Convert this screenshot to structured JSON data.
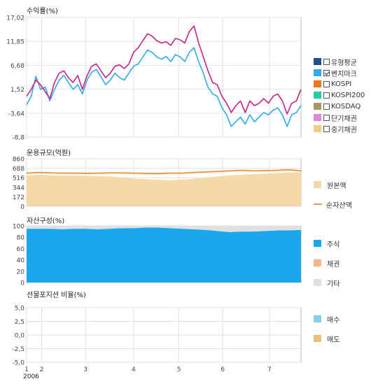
{
  "chart_data": [
    {
      "type": "line",
      "title": "수익률(%)",
      "y_ticks": [
        "17,02",
        "11,85",
        "6,68",
        "1,52",
        "-3,64",
        "-8,8"
      ],
      "ylim": [
        -8.8,
        17.02
      ],
      "series": [
        {
          "name": "벤치마크",
          "color": "#33aaee",
          "checked": true,
          "values": [
            -1.8,
            0,
            4.3,
            1.5,
            2,
            -1,
            1.5,
            3.5,
            4.5,
            3,
            1.5,
            2.5,
            0.5,
            3.5,
            5.2,
            5.8,
            4.2,
            2.5,
            3.5,
            5,
            4,
            3.5,
            5,
            6.5,
            7,
            8.5,
            10,
            9.5,
            8.5,
            8,
            8.6,
            7.5,
            9,
            8.5,
            7.5,
            9.5,
            10.5,
            7.5,
            5,
            2,
            0.5,
            0,
            -2.5,
            -4,
            -6.5,
            -5.5,
            -4.5,
            -6,
            -4,
            -5.5,
            -4.5,
            -3.5,
            -4,
            -3,
            -2.5,
            -4,
            -6.5,
            -4,
            -3.5,
            -2
          ]
        },
        {
          "name": "유형평균",
          "color": "#1f4e8c",
          "checked": false,
          "values": []
        },
        {
          "name": "KOSPI",
          "color": "#ee7722",
          "checked": false,
          "values": []
        },
        {
          "name": "KOSPI200",
          "color": "#22ccaa",
          "checked": false,
          "values": []
        },
        {
          "name": "KOSDAQ",
          "color": "#aa9966",
          "checked": false,
          "values": []
        },
        {
          "name": "단기채권",
          "color": "#dd88dd",
          "checked": false,
          "values": []
        },
        {
          "name": "중기채권",
          "color": "#f2cc88",
          "checked": false,
          "values": []
        },
        {
          "name": "",
          "color": "#cc2288",
          "checked": false,
          "in_legend": false,
          "values": [
            0,
            1.5,
            3.5,
            2.5,
            1,
            -0.5,
            3,
            5,
            5.5,
            4,
            3,
            4.5,
            1.5,
            4.5,
            6.5,
            7,
            5.5,
            4,
            5,
            6.5,
            6.8,
            6,
            7,
            9.5,
            10.5,
            12,
            13.5,
            13,
            12,
            11.5,
            11.8,
            11,
            12.5,
            12.2,
            11.5,
            14,
            15.2,
            11.5,
            8.5,
            5.5,
            3,
            2.5,
            0,
            -1.5,
            -3.5,
            -2,
            -1,
            -3.5,
            -1,
            -2,
            -1.5,
            -0.5,
            -1.5,
            0,
            0.5,
            -1,
            -3.8,
            -1.5,
            -1,
            1.5
          ]
        }
      ],
      "x_ticks": [
        "1",
        "2",
        "3",
        "4",
        "5",
        "6",
        "7"
      ],
      "x_sublabel": "2006"
    },
    {
      "type": "area",
      "title": "운용규모(억원)",
      "y_ticks": [
        "860",
        "688",
        "516",
        "344",
        "172",
        "0"
      ],
      "ylim": [
        0,
        860
      ],
      "series": [
        {
          "name": "원본액",
          "color": "#f5d9a8",
          "values": [
            560,
            570,
            560,
            555,
            560,
            550,
            545,
            540,
            520,
            500,
            490,
            480,
            470,
            480,
            500,
            520,
            540,
            560,
            570,
            580,
            590,
            600,
            610,
            615
          ]
        },
        {
          "name": "순자산액",
          "color": "#ee9944",
          "values": [
            600,
            610,
            605,
            600,
            600,
            595,
            600,
            605,
            605,
            600,
            595,
            590,
            600,
            600,
            610,
            620,
            630,
            640,
            650,
            640,
            645,
            650,
            660,
            640
          ]
        }
      ]
    },
    {
      "type": "area",
      "title": "자산구성(%)",
      "y_ticks": [
        "100",
        "80",
        "60",
        "40",
        "20",
        "0"
      ],
      "ylim": [
        0,
        100
      ],
      "series": [
        {
          "name": "주식",
          "color": "#1aa7ee",
          "values": [
            95,
            95,
            95,
            94,
            95,
            95,
            94,
            95,
            96,
            96,
            97,
            97,
            96,
            95,
            94,
            93,
            91,
            89,
            90,
            90,
            91,
            92,
            92,
            93
          ]
        },
        {
          "name": "채권",
          "color": "#f5b48a",
          "values": [
            0,
            0,
            0,
            0,
            0,
            0,
            0,
            0,
            0,
            0,
            0,
            0,
            0,
            0,
            0,
            0,
            0,
            0,
            0,
            0,
            0,
            0,
            0,
            0
          ]
        },
        {
          "name": "기타",
          "color": "#e0e0e0",
          "values": [
            5,
            5,
            5,
            6,
            5,
            5,
            6,
            5,
            4,
            4,
            3,
            3,
            4,
            5,
            6,
            7,
            9,
            11,
            10,
            10,
            9,
            8,
            8,
            7
          ]
        }
      ]
    },
    {
      "type": "line",
      "title": "선물포지션 비율(%)",
      "y_ticks": [
        "5,0",
        "2,5",
        "0,0",
        "-2,5",
        "-5,0"
      ],
      "ylim": [
        -5,
        5
      ],
      "series": [
        {
          "name": "매수",
          "color": "#88ccf0",
          "values": []
        },
        {
          "name": "매도",
          "color": "#e8c27a",
          "values": []
        }
      ]
    }
  ]
}
